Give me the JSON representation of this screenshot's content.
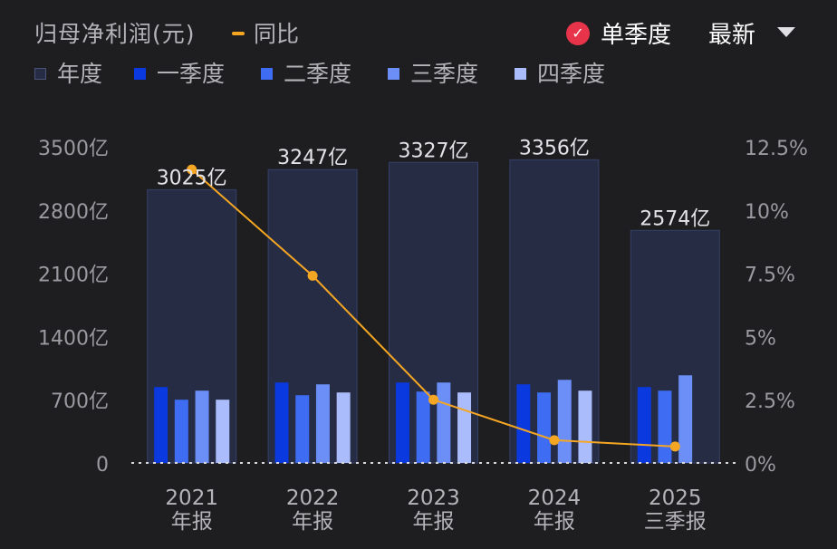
{
  "header": {
    "title": "归母净利润(元)",
    "yoy_label": "同比",
    "yoy_color": "#f5a623",
    "mode_label": "单季度",
    "mode_icon": "check-circle-icon",
    "mode_icon_color": "#e8344a",
    "latest_label": "最新",
    "latest_icon": "caret-down-icon"
  },
  "legend": [
    {
      "label": "年度",
      "color": "#252c44",
      "outline": true
    },
    {
      "label": "一季度",
      "color": "#0b39e0"
    },
    {
      "label": "二季度",
      "color": "#3e6cf2"
    },
    {
      "label": "三季度",
      "color": "#6c8ff7"
    },
    {
      "label": "四季度",
      "color": "#aabcfc"
    }
  ],
  "chart_data": {
    "type": "bar",
    "categories": [
      {
        "year": "2021",
        "period": "年报"
      },
      {
        "year": "2022",
        "period": "年报"
      },
      {
        "year": "2023",
        "period": "年报"
      },
      {
        "year": "2024",
        "period": "年报"
      },
      {
        "year": "2025",
        "period": "三季报"
      }
    ],
    "annual_totals": [
      3025,
      3247,
      3327,
      3356,
      2574
    ],
    "annual_total_labels": [
      "3025亿",
      "3247亿",
      "3327亿",
      "3356亿",
      "2574亿"
    ],
    "quarterly": [
      [
        840,
        700,
        800,
        700
      ],
      [
        890,
        750,
        870,
        780
      ],
      [
        890,
        790,
        890,
        780
      ],
      [
        870,
        780,
        920,
        800
      ],
      [
        840,
        800,
        970
      ]
    ],
    "yoy_percent": [
      11.6,
      7.4,
      2.5,
      0.9,
      0.65
    ],
    "ylim_left": [
      0,
      3500
    ],
    "yticks_left": [
      "0",
      "700亿",
      "1400亿",
      "2100亿",
      "2800亿",
      "3500亿"
    ],
    "ylim_right": [
      0,
      12.5
    ],
    "yticks_right": [
      "0%",
      "2.5%",
      "5%",
      "7.5%",
      "10%",
      "12.5%"
    ],
    "unit": "亿"
  }
}
